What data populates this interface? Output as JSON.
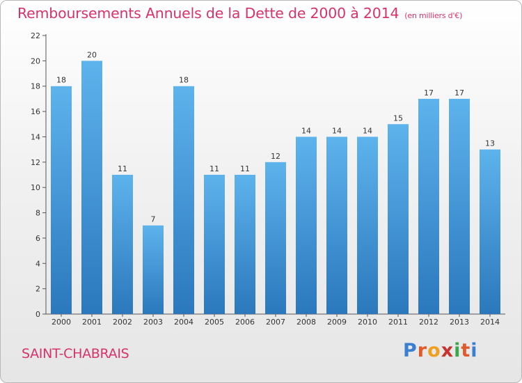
{
  "chart_data": {
    "type": "bar",
    "title": "Remboursements Annuels de la Dette de 2000 à 2014",
    "unit": "(en milliers d'€)",
    "categories": [
      "2000",
      "2001",
      "2002",
      "2003",
      "2004",
      "2005",
      "2006",
      "2007",
      "2008",
      "2009",
      "2010",
      "2011",
      "2012",
      "2013",
      "2014"
    ],
    "values": [
      18,
      20,
      11,
      7,
      18,
      11,
      11,
      12,
      14,
      14,
      14,
      15,
      17,
      17,
      13
    ],
    "ylim": [
      0,
      22
    ],
    "yticks": [
      0,
      2,
      4,
      6,
      8,
      10,
      12,
      14,
      16,
      18,
      20,
      22
    ],
    "xlabel": "",
    "ylabel": "",
    "grid": false,
    "bar_color": "#3a8fd6",
    "bar_color_light": "#5db3ec",
    "bar_color_dark": "#2b78bd",
    "title_color": "#d6336c"
  },
  "commune": "SAINT-CHABRAIS",
  "logo": {
    "letters": [
      "P",
      "r",
      "o",
      "x",
      "i",
      "t",
      "i"
    ],
    "colors": [
      "#3a7fd0",
      "#e05a2b",
      "#f0a020",
      "#c8322f",
      "#3aa84a",
      "#e05a2b",
      "#3a7fd0"
    ]
  }
}
